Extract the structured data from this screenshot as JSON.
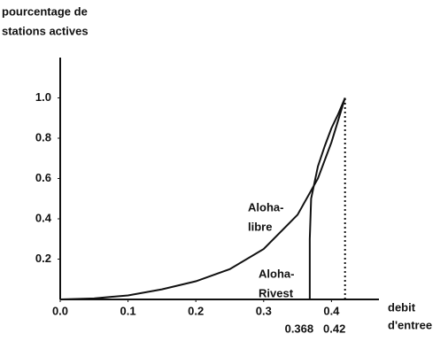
{
  "chart_data": {
    "type": "line",
    "y_label": [
      "pourcentage de",
      "stations  actives"
    ],
    "x_label": [
      "debit",
      "d'entree"
    ],
    "xlim": [
      0,
      0.47
    ],
    "xticks": [
      {
        "value": 0,
        "label": "0.0"
      },
      0.1,
      0.2,
      0.3,
      0.4
    ],
    "ylim": [
      0,
      1.2
    ],
    "yticks": [
      0.2,
      0.4,
      0.6,
      0.8,
      {
        "value": 1,
        "label": "1.0"
      }
    ],
    "grid": false,
    "series": [
      {
        "name": [
          "Aloha-",
          "libre"
        ],
        "color": "#111111",
        "x": [
          0,
          0.05,
          0.1,
          0.15,
          0.2,
          0.25,
          0.3,
          0.35,
          0.38,
          0.4,
          0.42
        ],
        "values": [
          0,
          0.005,
          0.02,
          0.05,
          0.09,
          0.15,
          0.25,
          0.42,
          0.6,
          0.78,
          1.0
        ]
      },
      {
        "name": [
          "Aloha-",
          "Rivest"
        ],
        "color": "#111111",
        "x": [
          0.368,
          0.368,
          0.37,
          0.38,
          0.39,
          0.4,
          0.41,
          0.42
        ],
        "values": [
          0,
          0.3,
          0.5,
          0.66,
          0.76,
          0.85,
          0.92,
          1.0
        ]
      }
    ],
    "annotations": [
      {
        "label": "0.368",
        "value": 0.368
      },
      {
        "label": "0.42",
        "value": 0.42,
        "dotted_top": 1.0
      }
    ]
  }
}
